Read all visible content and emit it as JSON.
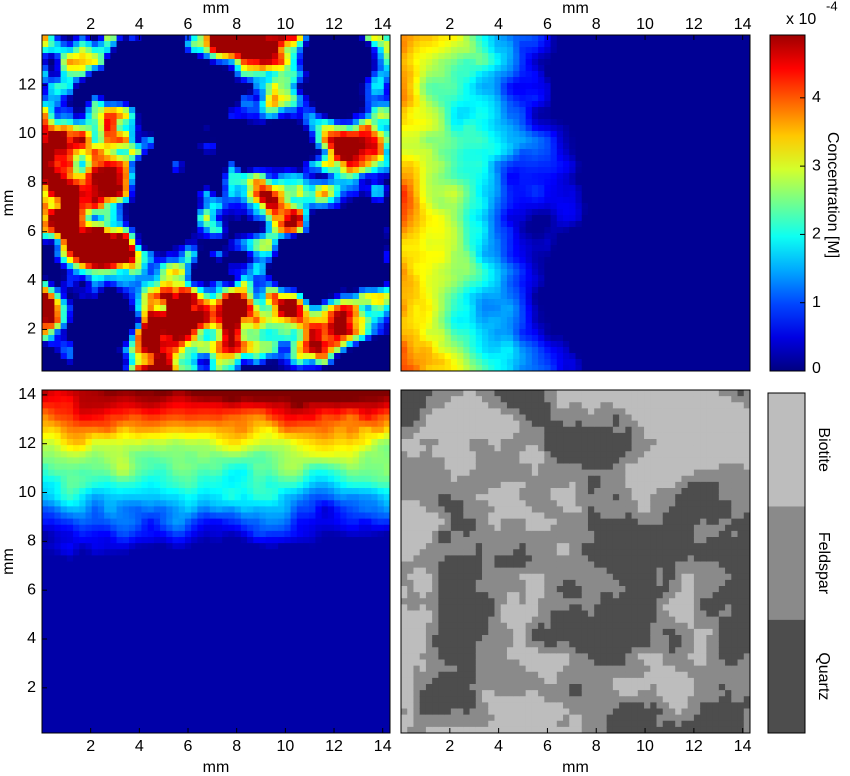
{
  "chart_data": [
    {
      "type": "heatmap",
      "colormap": "jet",
      "xaxis": "top",
      "xlabel": "mm",
      "ylabel": "mm",
      "xlim": [
        0,
        14.3
      ],
      "ylim": [
        0.3,
        14.05
      ],
      "xticks": [
        2,
        4,
        6,
        8,
        10,
        12,
        14
      ],
      "yticks": [
        2,
        4,
        6,
        8,
        10,
        12
      ]
    },
    {
      "type": "heatmap",
      "colormap": "jet",
      "xaxis": "top",
      "xlabel": "mm",
      "xlim": [
        0,
        14.3
      ],
      "ylim": [
        0.3,
        14.05
      ],
      "xticks": [
        2,
        4,
        6,
        8,
        10,
        12,
        14
      ]
    },
    {
      "type": "heatmap",
      "colormap": "jet",
      "xaxis": "bottom",
      "xlabel": "mm",
      "ylabel": "mm",
      "xlim": [
        0,
        14.3
      ],
      "ylim": [
        0.15,
        14.2
      ],
      "xticks": [
        2,
        4,
        6,
        8,
        10,
        12,
        14
      ],
      "yticks": [
        2,
        4,
        6,
        8,
        10,
        12,
        14
      ]
    },
    {
      "type": "heatmap",
      "colormap": "gray",
      "xaxis": "bottom",
      "xlabel": "mm",
      "xlim": [
        0,
        14.3
      ],
      "ylim": [
        0.15,
        14.2
      ],
      "xticks": [
        2,
        4,
        6,
        8,
        10,
        12,
        14
      ]
    },
    {
      "type": "colorbar",
      "label": "Concentration [M]",
      "scale_label": "x 10",
      "scale_exponent": "-4",
      "lim": [
        0,
        4.92
      ],
      "ticks": [
        0,
        1,
        2,
        3,
        4
      ]
    },
    {
      "type": "category-bar",
      "categories": [
        "Biotite",
        "Feldspar",
        "Quartz"
      ],
      "colors": [
        "#bdbdbd",
        "#8a8a8a",
        "#4d4d4d"
      ]
    }
  ]
}
